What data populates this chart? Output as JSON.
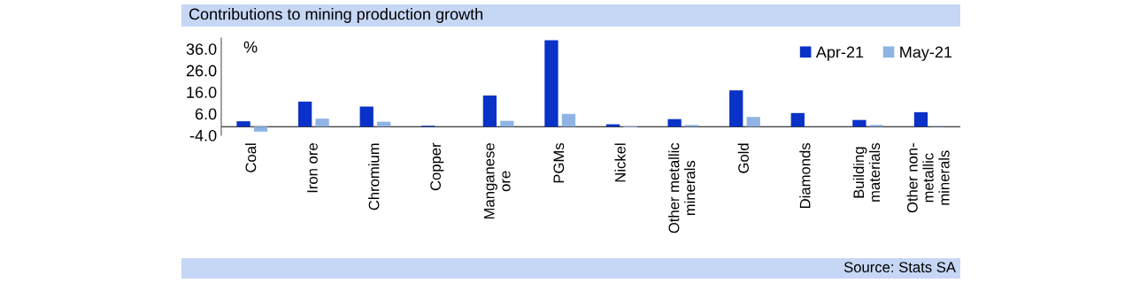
{
  "chart_data": {
    "type": "bar",
    "title": "Contributions to mining production growth",
    "ylabel": "%",
    "categories": [
      "Coal",
      "Iron ore",
      "Chromium",
      "Copper",
      "Manganese\nore",
      "PGMs",
      "Nickel",
      "Other metallic\nminerals",
      "Gold",
      "Diamonds",
      "Building\nmaterials",
      "Other non-\nmetallic\nminerals"
    ],
    "series": [
      {
        "name": "Apr-21",
        "color": "#0a32c8",
        "values": [
          2.5,
          11.6,
          9.3,
          0.4,
          14.4,
          40.0,
          1.1,
          3.5,
          16.8,
          6.3,
          3.1,
          6.7
        ]
      },
      {
        "name": "May-21",
        "color": "#8fb4e3",
        "values": [
          -2.3,
          3.7,
          2.3,
          0.0,
          2.7,
          5.9,
          -0.3,
          0.8,
          4.5,
          0.0,
          0.8,
          0.3
        ]
      }
    ],
    "ylim": [
      -4,
      41
    ],
    "yticks": [
      {
        "value": 36,
        "label": "36.0"
      },
      {
        "value": 26,
        "label": "26.0"
      },
      {
        "value": 16,
        "label": "16.0"
      },
      {
        "value": 6,
        "label": "6.0"
      },
      {
        "value": -4,
        "label": "-4.0"
      }
    ],
    "grid": false,
    "legend": "top right",
    "annotations": [
      "Source: Stats SA"
    ]
  }
}
